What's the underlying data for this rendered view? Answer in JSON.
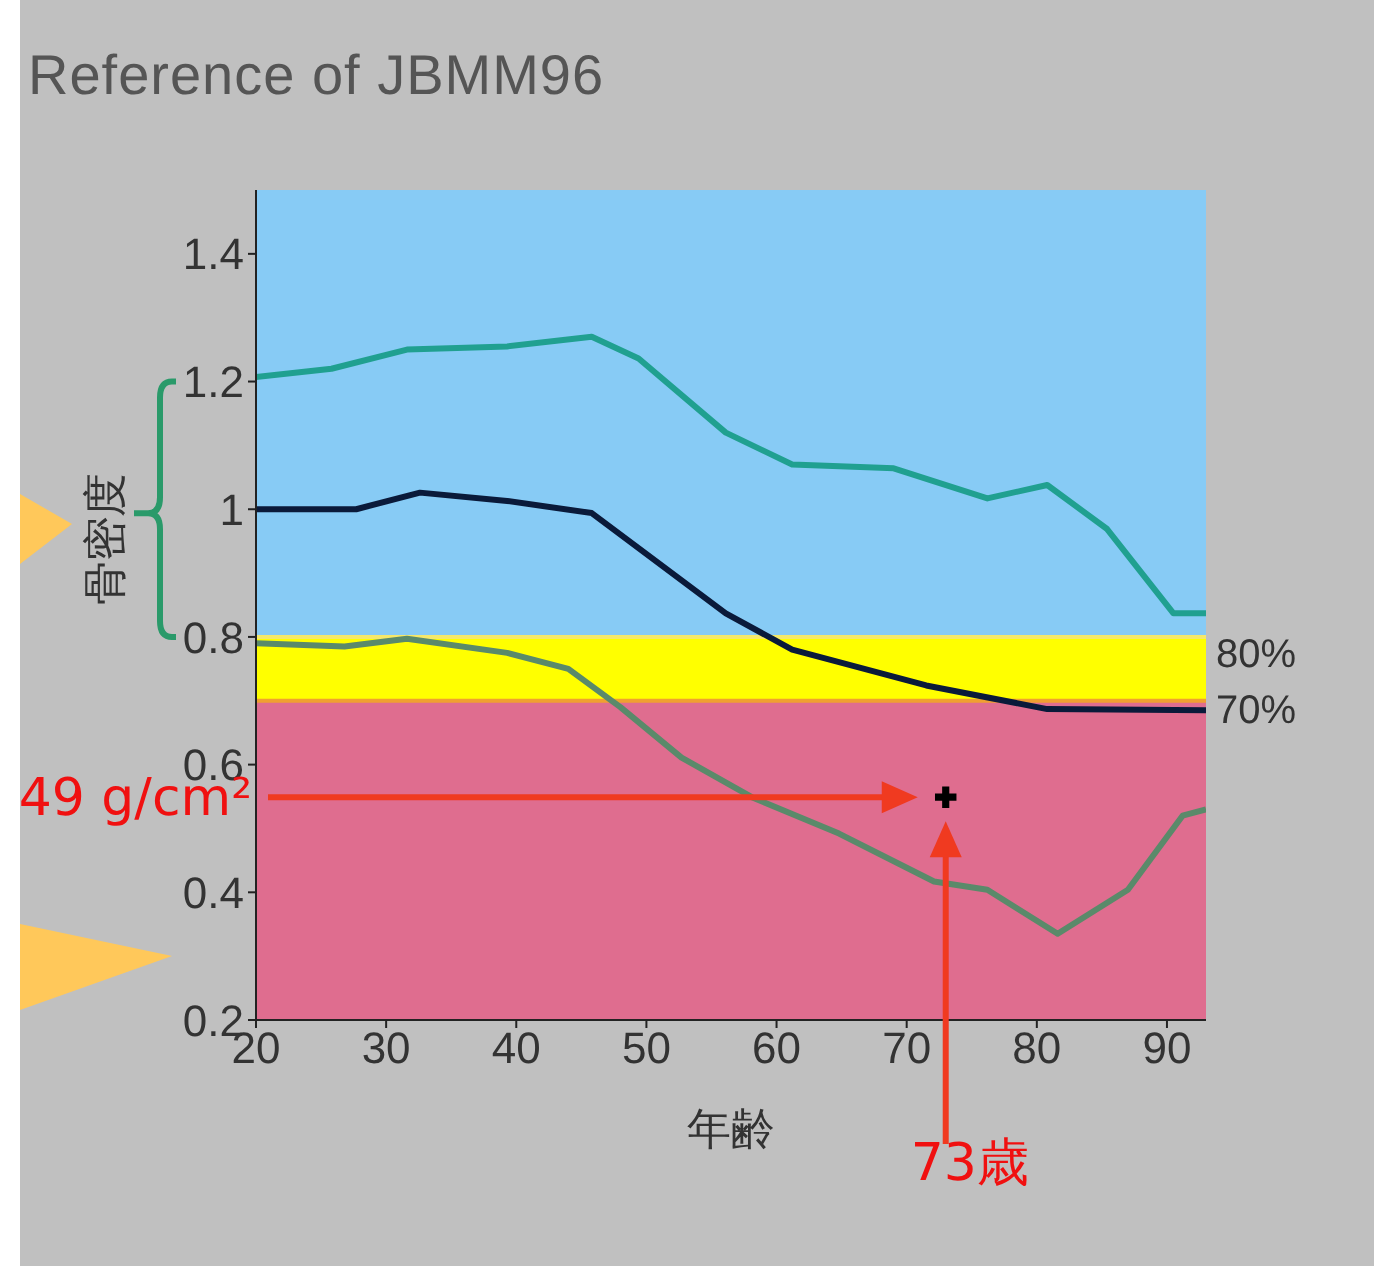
{
  "chart_data": {
    "type": "line",
    "title": "Reference of JBMM96",
    "xlabel": "年齢",
    "ylabel": "骨密度",
    "xlim": [
      20,
      93
    ],
    "xticks": [
      20,
      30,
      40,
      50,
      60,
      70,
      80,
      90
    ],
    "ylim": [
      0.2,
      1.5
    ],
    "yticks": [
      0.2,
      0.4,
      0.6,
      0.8,
      1,
      1.2,
      1.4
    ],
    "grid": false,
    "marker": "none",
    "line_style": "solid",
    "bands": [
      {
        "axis": "y",
        "from": 0.8,
        "to": 1.5,
        "color": "#87cbf5"
      },
      {
        "axis": "y",
        "from": 0.7,
        "to": 0.8,
        "color": "#ffff00"
      },
      {
        "axis": "y",
        "from": 0.2,
        "to": 0.7,
        "color": "#df6d8f"
      }
    ],
    "ref_lines": [
      {
        "axis": "y",
        "value": 0.8,
        "label": "80%",
        "color": "#f5e86a"
      },
      {
        "axis": "y",
        "value": 0.7,
        "label": "70%",
        "color": "#f0a030"
      }
    ],
    "series": [
      {
        "color": "#20a090",
        "x": [
          20,
          25.8,
          31.6,
          39.3,
          45.8,
          49.4,
          56.1,
          61.2,
          69,
          76.2,
          80.8,
          85.4,
          90.5,
          93
        ],
        "values": [
          1.207,
          1.22,
          1.25,
          1.255,
          1.27,
          1.236,
          1.12,
          1.07,
          1.064,
          1.017,
          1.038,
          0.969,
          0.837,
          0.837
        ]
      },
      {
        "color": "#0a1a3a",
        "x": [
          20,
          27.7,
          32.6,
          39.3,
          45.8,
          56.1,
          61.2,
          71.5,
          80.8,
          93
        ],
        "values": [
          1,
          1,
          1.026,
          1.013,
          0.994,
          0.837,
          0.78,
          0.724,
          0.687,
          0.685
        ]
      },
      {
        "color": "#5a8a6a",
        "x": [
          20,
          26.8,
          31.6,
          39.3,
          44,
          48,
          52.7,
          58.1,
          64.8,
          72.1,
          76.2,
          81.6,
          87,
          91.2,
          93
        ],
        "values": [
          0.79,
          0.785,
          0.797,
          0.775,
          0.75,
          0.69,
          0.611,
          0.549,
          0.492,
          0.417,
          0.404,
          0.335,
          0.404,
          0.52,
          0.53
        ]
      },
      {
        "type": "scatter",
        "color": "#000000",
        "marker": "cross",
        "x": [
          73
        ],
        "values": [
          0.549
        ]
      }
    ],
    "annotations": [
      "49 g/cm²",
      "73歳"
    ]
  }
}
